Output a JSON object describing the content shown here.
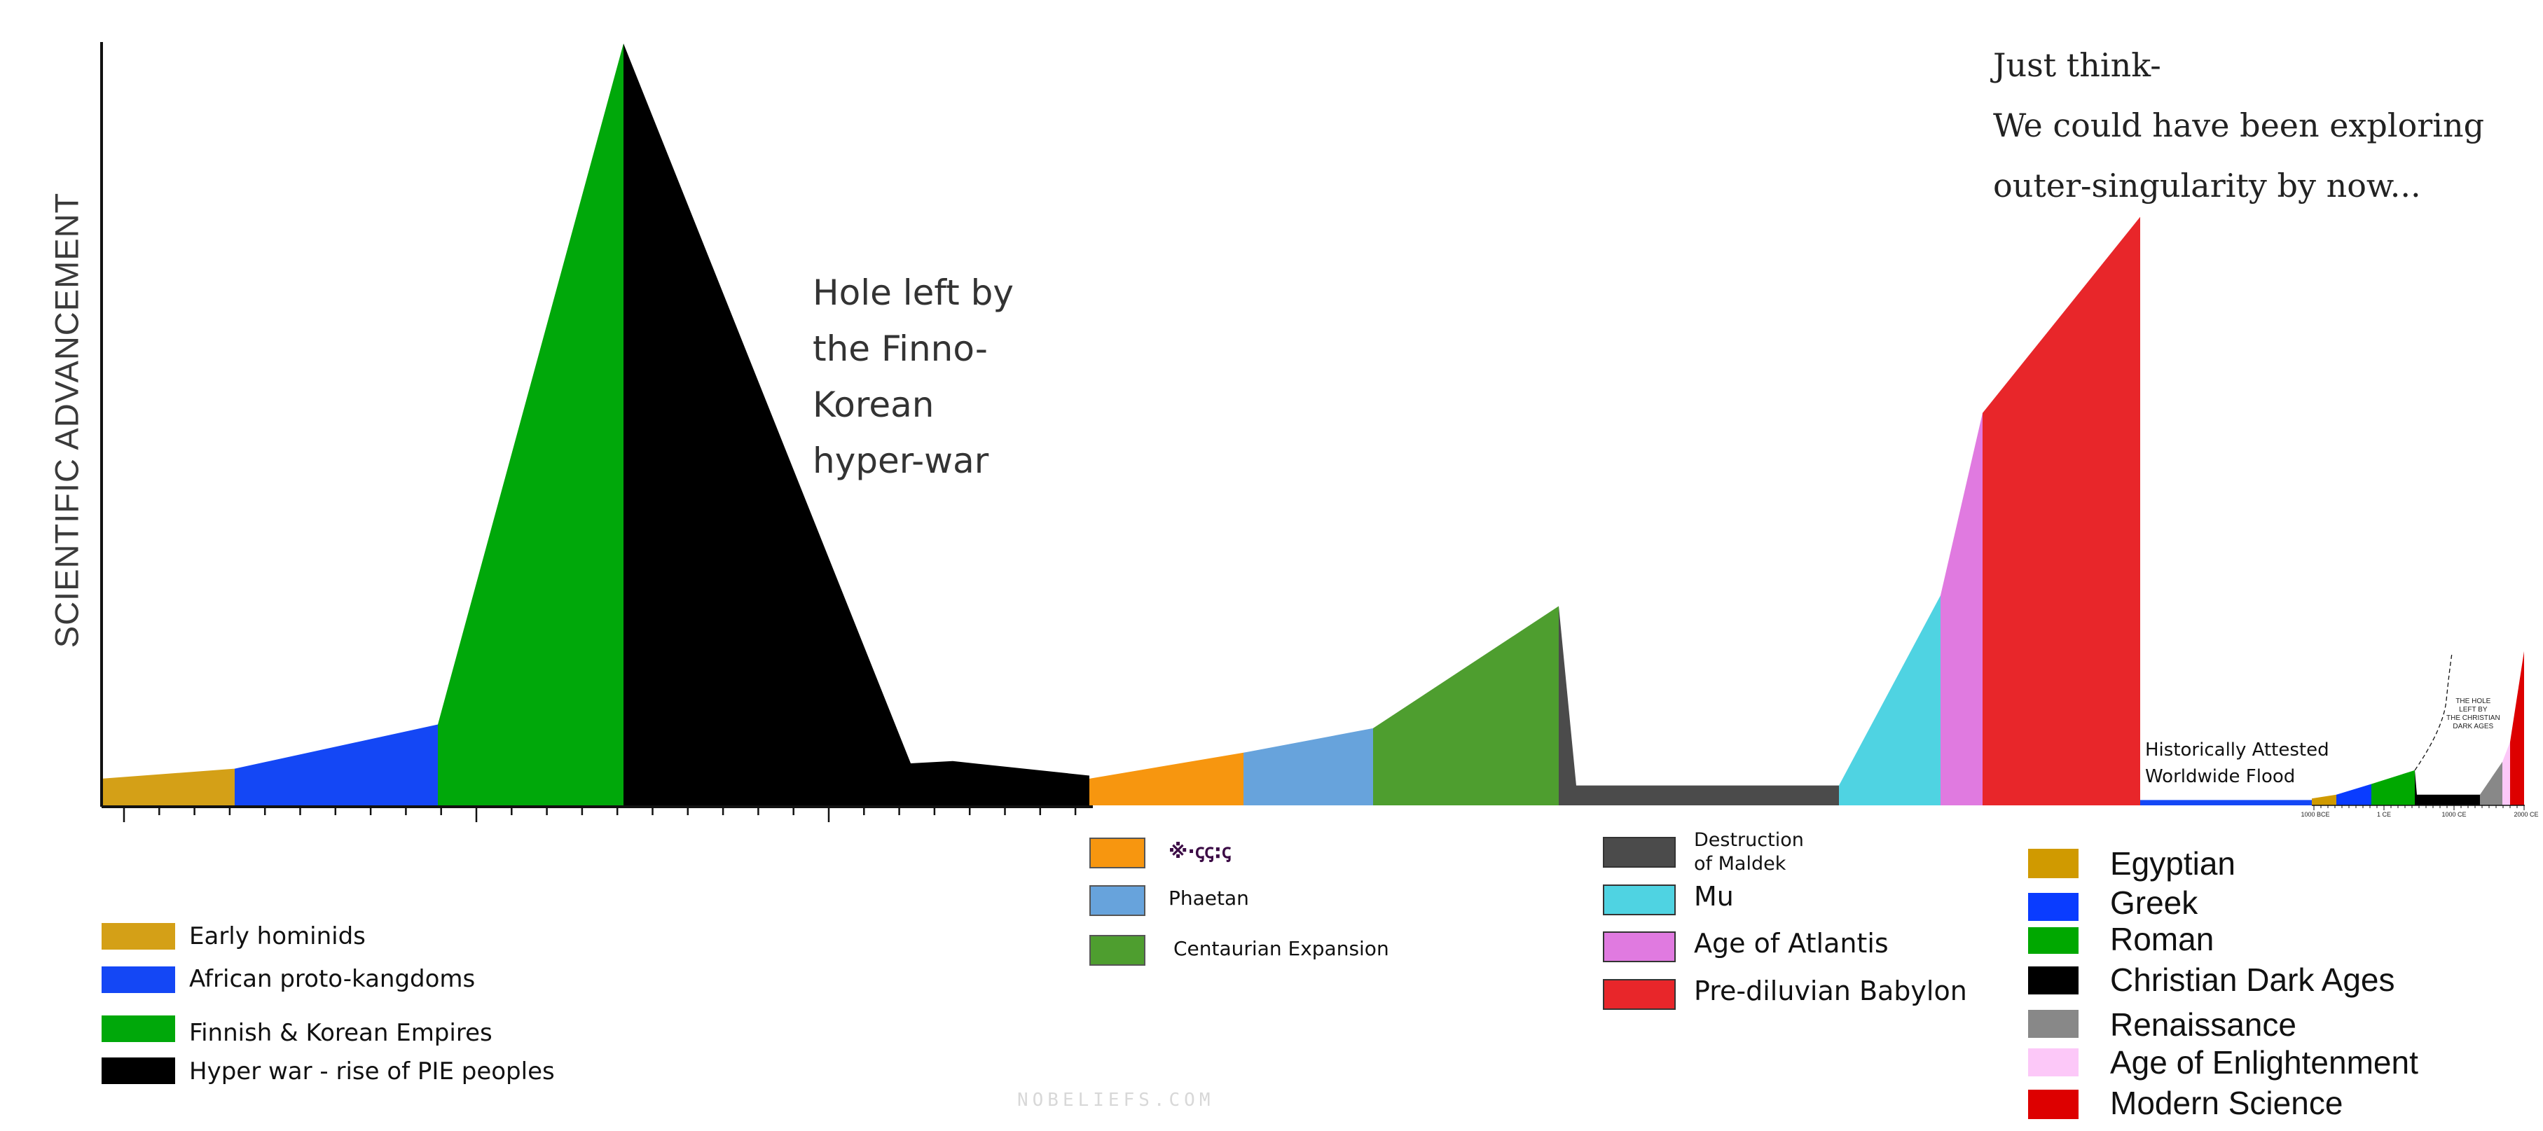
{
  "chart_data": [
    {
      "type": "area",
      "ylabel": "SCIENTIFIC ADVANCEMENT",
      "xlabel": "",
      "grid": false,
      "ylim": [
        0,
        100
      ],
      "segments": [
        {
          "name": "Early hominids",
          "color": "#d4a017",
          "points": [
            [
              0,
              3.5
            ],
            [
              3.8,
              4.8
            ]
          ]
        },
        {
          "name": "African proto-kangdoms",
          "color": "#1447f5",
          "points": [
            [
              3.8,
              4.8
            ],
            [
              9.6,
              10.6
            ]
          ]
        },
        {
          "name": "Finnish & Korean Empires",
          "color": "#00a80a",
          "points": [
            [
              9.6,
              10.6
            ],
            [
              14.9,
              99.8
            ]
          ]
        },
        {
          "name": "Hyper war - rise of PIE peoples",
          "color": "#000000",
          "points": [
            [
              14.9,
              99.8
            ],
            [
              23.1,
              5.5
            ],
            [
              24.3,
              5.8
            ],
            [
              28.2,
              3.9
            ]
          ]
        },
        {
          "name": "glyph-script",
          "color": "#f7960f",
          "points": [
            [
              28.2,
              3.5
            ],
            [
              32.6,
              6.9
            ]
          ]
        },
        {
          "name": "Phaetan",
          "color": "#67a3dc",
          "points": [
            [
              32.6,
              6.9
            ],
            [
              36.3,
              10.1
            ]
          ]
        },
        {
          "name": "Centaurian Expansion",
          "color": "#4e9e2f",
          "points": [
            [
              36.3,
              10.1
            ],
            [
              41.6,
              26.1
            ]
          ]
        },
        {
          "name": "Destruction of Maldek",
          "color": "#4b4b4b",
          "points": [
            [
              41.6,
              26.1
            ],
            [
              42.1,
              2.6
            ],
            [
              49.6,
              2.6
            ]
          ]
        },
        {
          "name": "Mu",
          "color": "#4fd3e2",
          "points": [
            [
              49.6,
              2.6
            ],
            [
              52.5,
              27.5
            ]
          ]
        },
        {
          "name": "Age of Atlantis",
          "color": "#e07ae0",
          "points": [
            [
              52.5,
              27.5
            ],
            [
              53.7,
              51.4
            ]
          ]
        },
        {
          "name": "Pre-diluvian Babylon",
          "color": "#e8262a",
          "points": [
            [
              53.7,
              51.4
            ],
            [
              58.2,
              77.1
            ]
          ]
        },
        {
          "name": "Historically Attested Worldwide Flood",
          "color": "#1447f5",
          "points": [
            [
              58.2,
              0.7
            ],
            [
              63.1,
              0.7
            ]
          ]
        }
      ]
    },
    {
      "type": "area",
      "x_tick_labels": [
        "1000 BCE",
        "1 CE",
        "1000 CE",
        "2000 CE"
      ],
      "x_ticks": [
        -1000,
        1,
        1000,
        2000
      ],
      "xlim": [
        -1030,
        2000
      ],
      "annotation": "THE HOLE LEFT BY THE CHRISTIAN DARK AGES",
      "segments": [
        {
          "name": "Egyptian",
          "color": "#d09a00",
          "points": [
            [
              -1030,
              0.9
            ],
            [
              -680,
              1.4
            ]
          ]
        },
        {
          "name": "Greek",
          "color": "#0a3cff",
          "points": [
            [
              -680,
              1.4
            ],
            [
              -180,
              2.8
            ]
          ]
        },
        {
          "name": "Roman",
          "color": "#00a800",
          "points": [
            [
              -180,
              2.8
            ],
            [
              440,
              4.6
            ]
          ]
        },
        {
          "name": "Christian Dark Ages",
          "color": "#000000",
          "points": [
            [
              440,
              4.6
            ],
            [
              470,
              1.4
            ],
            [
              1370,
              1.4
            ]
          ]
        },
        {
          "name": "Renaissance",
          "color": "#888888",
          "points": [
            [
              1370,
              1.4
            ],
            [
              1690,
              5.7
            ]
          ]
        },
        {
          "name": "Age of Enlightenment",
          "color": "#fcc8f8",
          "points": [
            [
              1690,
              5.7
            ],
            [
              1800,
              8.3
            ]
          ]
        },
        {
          "name": "Modern Science",
          "color": "#dd0000",
          "points": [
            [
              1800,
              8.3
            ],
            [
              2000,
              20.2
            ]
          ]
        }
      ]
    }
  ],
  "annotations": {
    "hole_lines": [
      "Hole left by",
      "the Finno-",
      "Korean",
      "hyper-war"
    ],
    "think_lines": [
      "Just think-",
      "We could have been exploring",
      "outer-singularity by now..."
    ],
    "flood_lines": [
      "Historically Attested",
      "Worldwide Flood"
    ],
    "inset_note_lines": [
      "THE HOLE",
      "LEFT BY",
      "THE CHRISTIAN",
      "DARK AGES"
    ]
  },
  "legends": {
    "left": [
      {
        "label": "Early hominids",
        "color": "#d4a017"
      },
      {
        "label": "African proto-kangdoms",
        "color": "#1447f5"
      },
      {
        "label": "Finnish & Korean Empires",
        "color": "#00a80a"
      },
      {
        "label": "Hyper war - rise of PIE peoples",
        "color": "#000000"
      }
    ],
    "middle": [
      {
        "label": "※·ꞔꞔ꞉ꞔ",
        "color": "#f7960f"
      },
      {
        "label": "Phaetan",
        "color": "#67a3dc"
      },
      {
        "label": "Centaurian Expansion",
        "color": "#4e9e2f"
      }
    ],
    "center_right": [
      {
        "label": "Destruction of Maldek",
        "color": "#4b4b4b"
      },
      {
        "label": "Mu",
        "color": "#4fd3e2"
      },
      {
        "label": "Age of Atlantis",
        "color": "#e07ae0"
      },
      {
        "label": "Pre-diluvian Babylon",
        "color": "#e8262a"
      }
    ],
    "right": [
      {
        "label": "Egyptian",
        "color": "#d09a00"
      },
      {
        "label": "Greek",
        "color": "#0a3cff"
      },
      {
        "label": "Roman",
        "color": "#00a800"
      },
      {
        "label": "Christian Dark Ages",
        "color": "#000000"
      },
      {
        "label": "Renaissance",
        "color": "#888888"
      },
      {
        "label": "Age of Enlightenment",
        "color": "#fcc8f8"
      },
      {
        "label": "Modern Science",
        "color": "#dd0000"
      }
    ]
  },
  "watermark": "NOBELIEFS.COM"
}
